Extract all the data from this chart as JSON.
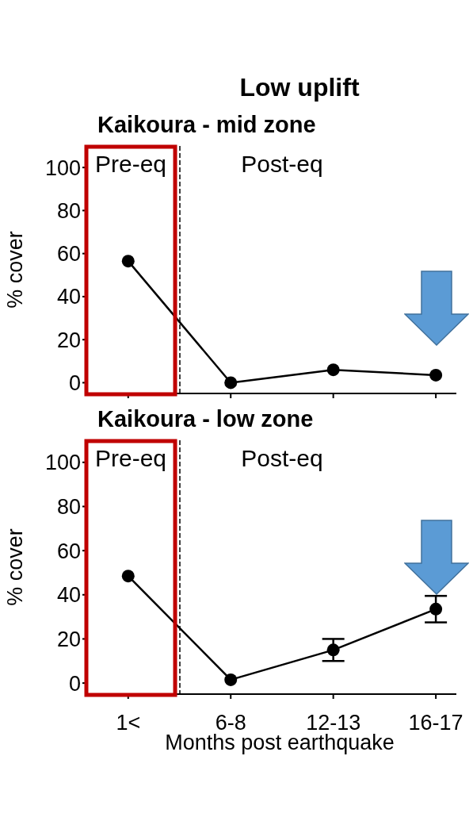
{
  "chart_data": [
    {
      "type": "line",
      "title": "Low uplift",
      "subtitle": "Kaikoura - mid zone",
      "ylabel": "% cover",
      "categories": [
        null,
        null,
        null,
        null
      ],
      "series": [
        {
          "color": "#000000",
          "values": [
            56.5,
            0,
            6,
            3.5
          ]
        }
      ],
      "ylim": [
        -5,
        110
      ],
      "yticks": [
        0,
        20,
        40,
        60,
        80,
        100
      ],
      "grid": false,
      "legend": false,
      "marker": "circle",
      "line_style": "solid",
      "tick_labels": "y",
      "annotations": [
        "Pre-eq",
        "Post-eq"
      ]
    },
    {
      "type": "line",
      "title": "Kaikoura - low zone",
      "xlabel": "Months post earthquake",
      "ylabel": "% cover",
      "categories": [
        "1<",
        "6-8",
        "12-13",
        "16-17"
      ],
      "series": [
        {
          "color": "#000000",
          "values": [
            48.5,
            1.5,
            15,
            33.5
          ],
          "errors": [
            null,
            null,
            5,
            6
          ]
        }
      ],
      "ylim": [
        -5,
        110
      ],
      "yticks": [
        0,
        20,
        40,
        60,
        80,
        100
      ],
      "grid": false,
      "legend": false,
      "marker": "circle",
      "line_style": "solid",
      "annotations": [
        "Pre-eq",
        "Post-eq"
      ]
    }
  ]
}
